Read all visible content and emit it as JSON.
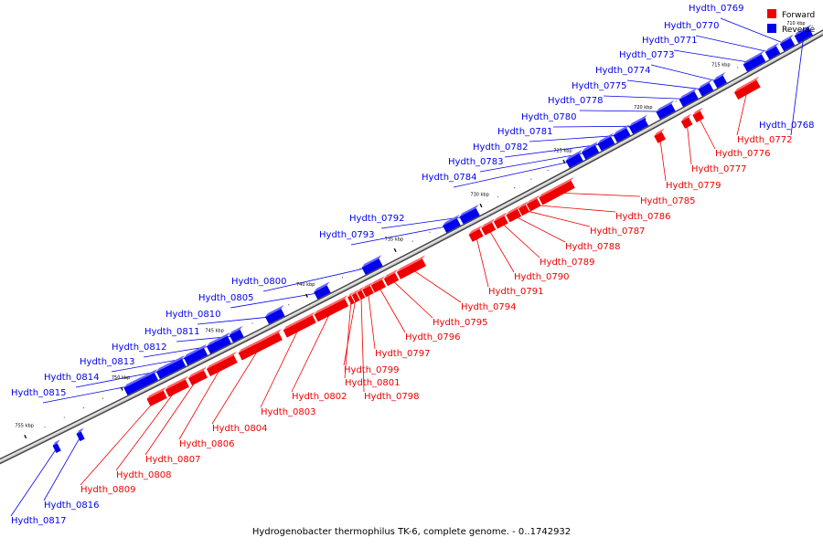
{
  "caption": "Hydrogenobacter thermophilus TK-6, complete genome. - 0..1742932",
  "legend": {
    "forward": {
      "label": "Forward",
      "color": "#ee0000"
    },
    "reverse": {
      "label": "Reverse",
      "color": "#0000ee"
    }
  },
  "colors": {
    "forward": "#ee0000",
    "reverse": "#0000ee",
    "backbone": "#999999"
  },
  "ticks": [
    {
      "kbp": 710,
      "label": "710 kbp"
    },
    {
      "kbp": 715,
      "label": "715 kbp"
    },
    {
      "kbp": 720,
      "label": "720 kbp"
    },
    {
      "kbp": 725,
      "label": "725 kbp"
    },
    {
      "kbp": 730,
      "label": "730 kbp"
    },
    {
      "kbp": 735,
      "label": "735 kbp"
    },
    {
      "kbp": 740,
      "label": "740 kbp"
    },
    {
      "kbp": 745,
      "label": "745 kbp"
    },
    {
      "kbp": 750,
      "label": "750 kbp"
    },
    {
      "kbp": 755,
      "label": "755 kbp"
    }
  ],
  "genes": [
    {
      "label": "Hydth_0768",
      "strand": "reverse"
    },
    {
      "label": "Hydth_0769",
      "strand": "reverse"
    },
    {
      "label": "Hydth_0770",
      "strand": "reverse"
    },
    {
      "label": "Hydth_0771",
      "strand": "reverse"
    },
    {
      "label": "Hydth_0772",
      "strand": "forward"
    },
    {
      "label": "Hydth_0773",
      "strand": "reverse"
    },
    {
      "label": "Hydth_0774",
      "strand": "reverse"
    },
    {
      "label": "Hydth_0775",
      "strand": "reverse"
    },
    {
      "label": "Hydth_0776",
      "strand": "forward"
    },
    {
      "label": "Hydth_0777",
      "strand": "forward"
    },
    {
      "label": "Hydth_0778",
      "strand": "reverse"
    },
    {
      "label": "Hydth_0779",
      "strand": "forward"
    },
    {
      "label": "Hydth_0780",
      "strand": "reverse"
    },
    {
      "label": "Hydth_0781",
      "strand": "reverse"
    },
    {
      "label": "Hydth_0782",
      "strand": "reverse"
    },
    {
      "label": "Hydth_0783",
      "strand": "reverse"
    },
    {
      "label": "Hydth_0784",
      "strand": "reverse"
    },
    {
      "label": "Hydth_0785",
      "strand": "forward"
    },
    {
      "label": "Hydth_0786",
      "strand": "forward"
    },
    {
      "label": "Hydth_0787",
      "strand": "forward"
    },
    {
      "label": "Hydth_0788",
      "strand": "forward"
    },
    {
      "label": "Hydth_0789",
      "strand": "forward"
    },
    {
      "label": "Hydth_0790",
      "strand": "forward"
    },
    {
      "label": "Hydth_0791",
      "strand": "forward"
    },
    {
      "label": "Hydth_0792",
      "strand": "reverse"
    },
    {
      "label": "Hydth_0793",
      "strand": "reverse"
    },
    {
      "label": "Hydth_0794",
      "strand": "forward"
    },
    {
      "label": "Hydth_0795",
      "strand": "forward"
    },
    {
      "label": "Hydth_0796",
      "strand": "forward"
    },
    {
      "label": "Hydth_0797",
      "strand": "forward"
    },
    {
      "label": "Hydth_0798",
      "strand": "forward"
    },
    {
      "label": "Hydth_0799",
      "strand": "forward"
    },
    {
      "label": "Hydth_0800",
      "strand": "reverse"
    },
    {
      "label": "Hydth_0801",
      "strand": "forward"
    },
    {
      "label": "Hydth_0802",
      "strand": "forward"
    },
    {
      "label": "Hydth_0803",
      "strand": "forward"
    },
    {
      "label": "Hydth_0804",
      "strand": "forward"
    },
    {
      "label": "Hydth_0805",
      "strand": "reverse"
    },
    {
      "label": "Hydth_0806",
      "strand": "forward"
    },
    {
      "label": "Hydth_0807",
      "strand": "forward"
    },
    {
      "label": "Hydth_0808",
      "strand": "forward"
    },
    {
      "label": "Hydth_0809",
      "strand": "forward"
    },
    {
      "label": "Hydth_0810",
      "strand": "reverse"
    },
    {
      "label": "Hydth_0811",
      "strand": "reverse"
    },
    {
      "label": "Hydth_0812",
      "strand": "reverse"
    },
    {
      "label": "Hydth_0813",
      "strand": "reverse"
    },
    {
      "label": "Hydth_0814",
      "strand": "reverse"
    },
    {
      "label": "Hydth_0815",
      "strand": "reverse"
    },
    {
      "label": "Hydth_0816",
      "strand": "reverse"
    },
    {
      "label": "Hydth_0817",
      "strand": "reverse"
    }
  ]
}
